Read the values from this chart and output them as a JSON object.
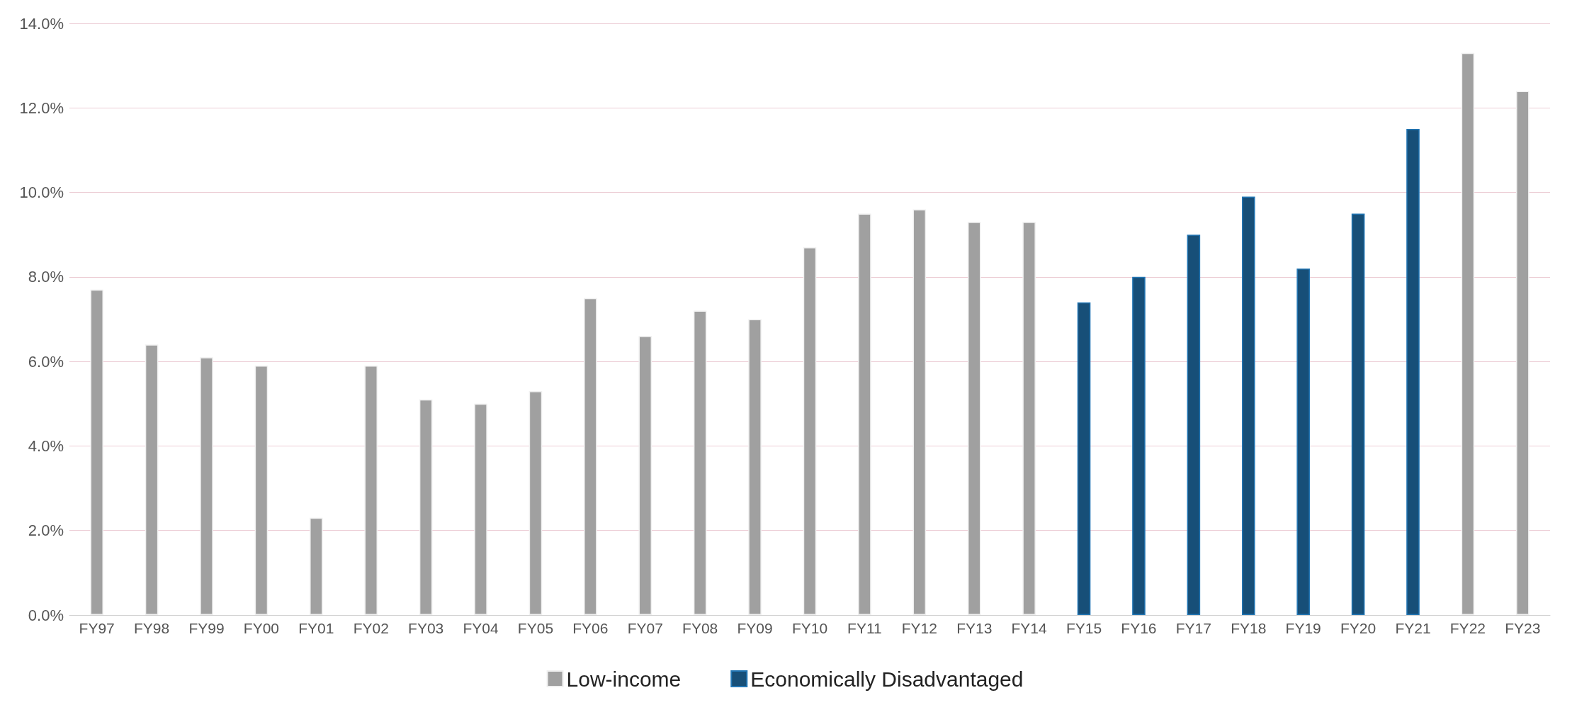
{
  "chart_data": {
    "type": "bar",
    "stacked": true,
    "categories": [
      "FY97",
      "FY98",
      "FY99",
      "FY00",
      "FY01",
      "FY02",
      "FY03",
      "FY04",
      "FY05",
      "FY06",
      "FY07",
      "FY08",
      "FY09",
      "FY10",
      "FY11",
      "FY12",
      "FY13",
      "FY14",
      "FY15",
      "FY16",
      "FY17",
      "FY18",
      "FY19",
      "FY20",
      "FY21",
      "FY22",
      "FY23"
    ],
    "series": [
      {
        "name": "Low-income",
        "color": "#a0a0a0",
        "values": [
          7.7,
          6.4,
          6.1,
          5.9,
          2.3,
          5.9,
          5.1,
          5.0,
          5.3,
          7.5,
          6.6,
          7.2,
          7.0,
          8.7,
          9.5,
          9.6,
          9.3,
          9.3,
          null,
          null,
          null,
          null,
          null,
          null,
          null,
          13.3,
          12.4
        ]
      },
      {
        "name": "Economically Disadvantaged",
        "color": "#174f78",
        "values": [
          null,
          null,
          null,
          null,
          null,
          null,
          null,
          null,
          null,
          null,
          null,
          null,
          null,
          null,
          null,
          null,
          null,
          null,
          7.4,
          8.0,
          9.0,
          9.9,
          8.2,
          9.5,
          11.5,
          null,
          null
        ]
      }
    ],
    "ylim": [
      0,
      14
    ],
    "yticks": [
      {
        "value": 0,
        "label": "0.0%"
      },
      {
        "value": 2,
        "label": "2.0%"
      },
      {
        "value": 4,
        "label": "4.0%"
      },
      {
        "value": 6,
        "label": "6.0%"
      },
      {
        "value": 8,
        "label": "8.0%"
      },
      {
        "value": 10,
        "label": "10.0%"
      },
      {
        "value": 12,
        "label": "12.0%"
      },
      {
        "value": 14,
        "label": "14.0%"
      }
    ],
    "grid": "y",
    "legend": "bottom"
  }
}
